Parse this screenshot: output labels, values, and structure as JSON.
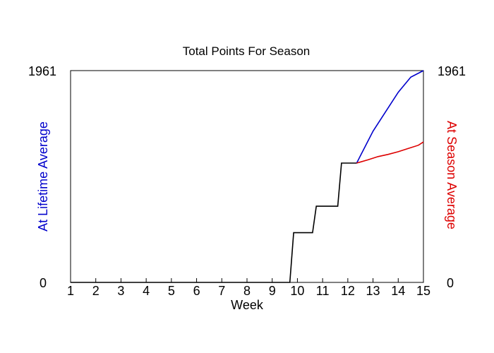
{
  "chart_data": {
    "type": "line",
    "title": "Total Points For Season",
    "xlabel": "Week",
    "ylabel_left": "At Lifetime Average",
    "ylabel_right": "At Season Average",
    "xlim": [
      1,
      15
    ],
    "ylim": [
      0,
      1961
    ],
    "x_ticks": [
      "1",
      "2",
      "3",
      "4",
      "5",
      "6",
      "7",
      "8",
      "9",
      "10",
      "11",
      "12",
      "13",
      "14",
      "15"
    ],
    "y_ticks_left": [
      "0",
      "1961"
    ],
    "y_ticks_right": [
      "0",
      "1961"
    ],
    "grid": false,
    "legend": "none",
    "series": [
      {
        "color": "#000000",
        "points": [
          [
            1,
            0
          ],
          [
            9.7,
            0
          ],
          [
            9.85,
            460
          ],
          [
            10.6,
            460
          ],
          [
            10.75,
            705
          ],
          [
            11.6,
            705
          ],
          [
            11.75,
            1105
          ],
          [
            12.35,
            1105
          ]
        ]
      },
      {
        "color": "#0000cc",
        "points": [
          [
            12.35,
            1105
          ],
          [
            13,
            1400
          ],
          [
            13.5,
            1580
          ],
          [
            14,
            1760
          ],
          [
            14.5,
            1900
          ],
          [
            15,
            1961
          ]
        ]
      },
      {
        "color": "#dd0000",
        "points": [
          [
            12.35,
            1105
          ],
          [
            12.8,
            1135
          ],
          [
            13.2,
            1165
          ],
          [
            13.6,
            1185
          ],
          [
            14,
            1210
          ],
          [
            14.4,
            1240
          ],
          [
            14.8,
            1270
          ],
          [
            15,
            1300
          ]
        ]
      }
    ],
    "colors": {
      "left_label": "#0000cc",
      "right_label": "#dd0000",
      "axis": "#000000"
    }
  }
}
